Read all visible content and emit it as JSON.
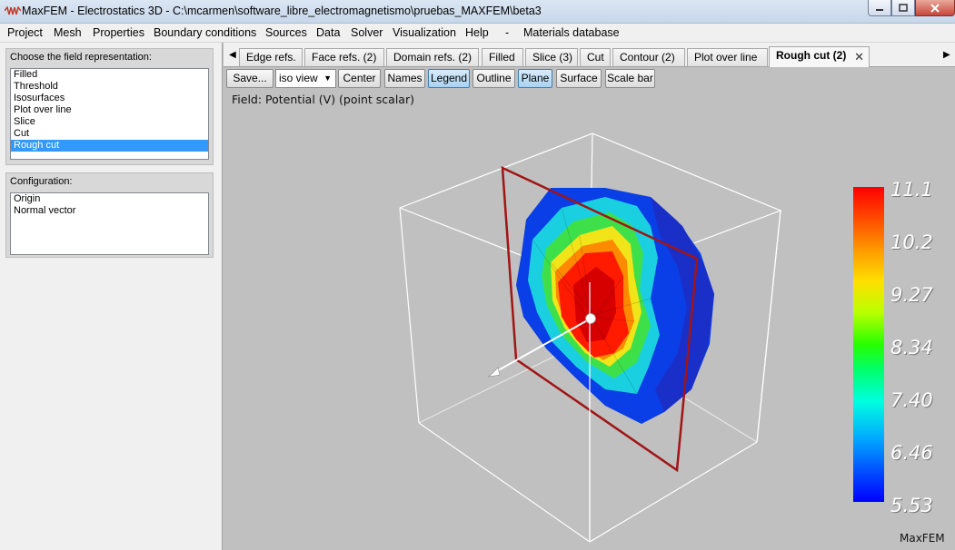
{
  "window": {
    "title": "MaxFEM - Electrostatics 3D - C:\\mcarmen\\software_libre_electromagnetismo\\pruebas_MAXFEM\\beta3",
    "accent_color": "#3399ff"
  },
  "menu": [
    "Project",
    "Mesh",
    "Properties",
    "Boundary conditions",
    "Sources",
    "Data",
    "Solver",
    "Visualization",
    "Help",
    "-",
    "Materials database"
  ],
  "left": {
    "field_group_label": "Choose the field representation:",
    "field_options": [
      "Filled",
      "Threshold",
      "Isosurfaces",
      "Plot over line",
      "Slice",
      "Cut",
      "Rough cut"
    ],
    "selected_field_option": "Rough cut",
    "config_group_label": "Configuration:",
    "config_options": [
      "Origin",
      "Normal vector"
    ]
  },
  "tabs": [
    {
      "label": "Edge refs."
    },
    {
      "label": "Face refs. (2)"
    },
    {
      "label": "Domain refs. (2)"
    },
    {
      "label": "Filled"
    },
    {
      "label": "Slice (3)"
    },
    {
      "label": "Cut"
    },
    {
      "label": "Contour (2)"
    },
    {
      "label": "Plot over line"
    },
    {
      "label": "Rough cut (2)",
      "active": true
    }
  ],
  "toolbar": {
    "save": "Save...",
    "view_select": "iso view",
    "center": "Center",
    "names": "Names",
    "legend": "Legend",
    "outline": "Outline",
    "plane": "Plane",
    "surface": "Surface",
    "scale_bar": "Scale bar",
    "toggled": [
      "Legend",
      "Plane"
    ]
  },
  "viewport": {
    "field_label": "Field: Potential (V) (point scalar)",
    "brand": "MaxFEM",
    "colorbar": {
      "ticks": [
        "11.1",
        "10.2",
        "9.27",
        "8.34",
        "7.40",
        "6.46",
        "5.53"
      ],
      "max_color": "#ff0000",
      "min_color": "#0000ff"
    }
  }
}
